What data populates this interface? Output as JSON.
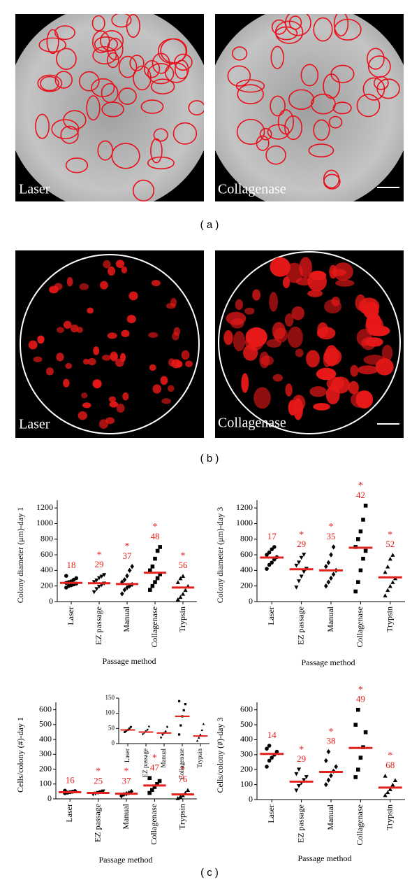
{
  "figure": {
    "panel_a": {
      "left": "Laser",
      "right": "Collagenase",
      "caption": "( a )"
    },
    "panel_b": {
      "left": "Laser",
      "right": "Collagenase",
      "caption": "( b )"
    },
    "panel_c": {
      "caption": "( c )"
    }
  },
  "chart_data": [
    {
      "type": "strip",
      "ylabel": "Colony diameter (μm)-day 1",
      "xlabel": "Passage method",
      "categories": [
        "Laser",
        "EZ passage",
        "Manual",
        "Collagenase",
        "Trypsin"
      ],
      "markers": [
        "circle",
        "triangle-down",
        "diamond",
        "square",
        "triangle-up"
      ],
      "color": "#000000",
      "mean_color": "#e3211c",
      "points": [
        [
          180,
          200,
          210,
          220,
          230,
          240,
          250,
          260,
          280,
          300,
          330
        ],
        [
          120,
          160,
          190,
          210,
          230,
          250,
          270,
          300,
          320,
          340
        ],
        [
          100,
          150,
          180,
          200,
          220,
          250,
          280,
          330,
          400,
          450
        ],
        [
          150,
          200,
          250,
          300,
          350,
          400,
          450,
          550,
          650,
          700
        ],
        [
          30,
          60,
          100,
          150,
          200,
          250,
          300,
          330
        ]
      ],
      "means": [
        240,
        235,
        225,
        370,
        180
      ],
      "n": [
        18,
        29,
        37,
        48,
        56
      ],
      "stars": [
        null,
        "*",
        "*",
        "*",
        "*"
      ],
      "ylim": [
        0,
        1300
      ],
      "yticks": [
        0,
        200,
        400,
        600,
        800,
        1000,
        1200
      ]
    },
    {
      "type": "strip",
      "ylabel": "Colony diameter (μm)-day 3",
      "xlabel": "Passage method",
      "categories": [
        "Laser",
        "EZ passage",
        "Manual",
        "Collagenase",
        "Trypsin"
      ],
      "markers": [
        "circle",
        "triangle-down",
        "diamond",
        "square",
        "triangle-up"
      ],
      "color": "#000000",
      "mean_color": "#e3211c",
      "points": [
        [
          420,
          470,
          500,
          540,
          570,
          600,
          630,
          670,
          700
        ],
        [
          180,
          260,
          320,
          380,
          420,
          460,
          500,
          560,
          600
        ],
        [
          200,
          250,
          300,
          350,
          400,
          450,
          500,
          600,
          700
        ],
        [
          130,
          250,
          400,
          550,
          650,
          700,
          800,
          900,
          1050,
          1230
        ],
        [
          80,
          150,
          200,
          250,
          300,
          380,
          450,
          550,
          600
        ]
      ],
      "means": [
        565,
        415,
        400,
        690,
        310
      ],
      "n": [
        17,
        29,
        35,
        42,
        52
      ],
      "stars": [
        null,
        "*",
        "*",
        "*",
        "*"
      ],
      "ylim": [
        0,
        1300
      ],
      "yticks": [
        0,
        200,
        400,
        600,
        800,
        1000,
        1200
      ]
    },
    {
      "type": "strip",
      "ylabel": "Cells/colony (#)-day 1",
      "xlabel": "Passage method",
      "categories": [
        "Laser",
        "EZ passage",
        "Manual",
        "Collagenase",
        "Trypsin"
      ],
      "markers": [
        "circle",
        "triangle-down",
        "diamond",
        "square",
        "triangle-up"
      ],
      "color": "#000000",
      "mean_color": "#e3211c",
      "points": [
        [
          38,
          42,
          45,
          48,
          52,
          55
        ],
        [
          30,
          35,
          40,
          45,
          50
        ],
        [
          20,
          30,
          35,
          40,
          50
        ],
        [
          40,
          60,
          80,
          100,
          120,
          140
        ],
        [
          5,
          15,
          25,
          40,
          60
        ]
      ],
      "means": [
        45,
        40,
        35,
        90,
        30
      ],
      "n": [
        16,
        25,
        37,
        47,
        76
      ],
      "stars": [
        null,
        "*",
        "*",
        "*",
        "*"
      ],
      "ylim": [
        0,
        650
      ],
      "yticks": [
        0,
        100,
        200,
        300,
        400,
        500,
        600
      ]
    },
    {
      "type": "strip",
      "ylabel": "Cells/colony (#)-day 3",
      "xlabel": "Passage method",
      "categories": [
        "Laser",
        "EZ passage",
        "Manual",
        "Collagenase",
        "Trypsin"
      ],
      "markers": [
        "circle",
        "triangle-down",
        "diamond",
        "square",
        "triangle-up"
      ],
      "color": "#000000",
      "mean_color": "#e3211c",
      "points": [
        [
          220,
          260,
          280,
          300,
          320,
          340,
          360
        ],
        [
          60,
          90,
          110,
          130,
          150,
          170,
          200
        ],
        [
          100,
          130,
          160,
          190,
          220,
          260,
          320
        ],
        [
          150,
          200,
          280,
          350,
          450,
          500,
          600
        ],
        [
          30,
          50,
          70,
          100,
          130,
          160
        ]
      ],
      "means": [
        305,
        120,
        185,
        345,
        80
      ],
      "n": [
        14,
        29,
        38,
        49,
        68
      ],
      "stars": [
        null,
        "*",
        "*",
        "*",
        "*"
      ],
      "ylim": [
        0,
        650
      ],
      "yticks": [
        0,
        100,
        200,
        300,
        400,
        500,
        600
      ]
    },
    {
      "type": "strip",
      "categories": [
        "Laser",
        "EZ passage",
        "Manual",
        "Collagenase",
        "Trypsin"
      ],
      "markers": [
        "circle",
        "triangle-down",
        "diamond",
        "square",
        "triangle-up"
      ],
      "color": "#000000",
      "mean_color": "#e3211c",
      "points": [
        [
          38,
          42,
          45,
          50,
          55
        ],
        [
          30,
          35,
          40,
          45,
          55
        ],
        [
          20,
          30,
          35,
          40,
          55
        ],
        [
          30,
          60,
          90,
          110,
          130,
          140
        ],
        [
          10,
          20,
          30,
          45,
          65
        ]
      ],
      "means": [
        45,
        38,
        35,
        90,
        25
      ],
      "ylim": [
        0,
        150
      ],
      "yticks": [
        0,
        50,
        100,
        150
      ]
    }
  ]
}
